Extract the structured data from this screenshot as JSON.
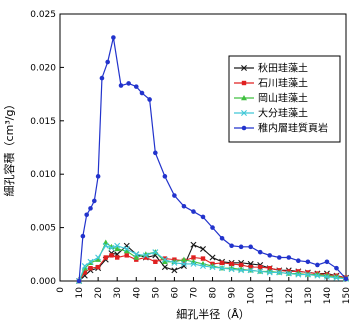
{
  "chart_data": {
    "type": "line",
    "xlabel": "細孔半径（Å）",
    "ylabel": "細孔容積（cm³/g）",
    "xlim": [
      0,
      150
    ],
    "ylim": [
      0,
      0.025
    ],
    "x_ticks": [
      0,
      10,
      20,
      30,
      40,
      50,
      60,
      70,
      80,
      90,
      100,
      110,
      120,
      130,
      140,
      150
    ],
    "y_ticks": [
      "0.000",
      "0.005",
      "0.010",
      "0.015",
      "0.020",
      "0.025"
    ],
    "grid": false,
    "legend_position": "top-right",
    "series": [
      {
        "name": "秋田珪藻土",
        "color": "#1a1a1a",
        "marker": "x",
        "points": [
          [
            10,
            0
          ],
          [
            13,
            0.0005
          ],
          [
            16,
            0.001
          ],
          [
            20,
            0.0012
          ],
          [
            24,
            0.002
          ],
          [
            27,
            0.0026
          ],
          [
            30,
            0.0025
          ],
          [
            35,
            0.0033
          ],
          [
            40,
            0.0025
          ],
          [
            45,
            0.0022
          ],
          [
            50,
            0.0024
          ],
          [
            55,
            0.0013
          ],
          [
            60,
            0.001
          ],
          [
            65,
            0.0014
          ],
          [
            70,
            0.0034
          ],
          [
            75,
            0.003
          ],
          [
            80,
            0.0022
          ],
          [
            85,
            0.0018
          ],
          [
            90,
            0.0017
          ],
          [
            95,
            0.0017
          ],
          [
            100,
            0.0016
          ],
          [
            105,
            0.0015
          ],
          [
            110,
            0.0012
          ],
          [
            115,
            0.001
          ],
          [
            120,
            0.001
          ],
          [
            125,
            0.0009
          ],
          [
            130,
            0.0008
          ],
          [
            135,
            0.0007
          ],
          [
            140,
            0.0007
          ],
          [
            145,
            0.0005
          ],
          [
            150,
            0.0003
          ]
        ]
      },
      {
        "name": "石川珪藻土",
        "color": "#e02020",
        "marker": "square",
        "points": [
          [
            10,
            0
          ],
          [
            13,
            0.0008
          ],
          [
            16,
            0.0012
          ],
          [
            20,
            0.0013
          ],
          [
            24,
            0.0022
          ],
          [
            27,
            0.0024
          ],
          [
            30,
            0.0022
          ],
          [
            35,
            0.0024
          ],
          [
            40,
            0.002
          ],
          [
            45,
            0.0022
          ],
          [
            50,
            0.0018
          ],
          [
            55,
            0.0021
          ],
          [
            60,
            0.002
          ],
          [
            65,
            0.0019
          ],
          [
            70,
            0.0022
          ],
          [
            75,
            0.0021
          ],
          [
            80,
            0.0016
          ],
          [
            85,
            0.0017
          ],
          [
            90,
            0.0016
          ],
          [
            95,
            0.0015
          ],
          [
            100,
            0.0013
          ],
          [
            105,
            0.0013
          ],
          [
            110,
            0.0012
          ],
          [
            115,
            0.001
          ],
          [
            120,
            0.0009
          ],
          [
            125,
            0.0009
          ],
          [
            130,
            0.0008
          ],
          [
            135,
            0.0007
          ],
          [
            140,
            0.0006
          ],
          [
            145,
            0.0005
          ],
          [
            150,
            0.0003
          ]
        ]
      },
      {
        "name": "岡山珪藻土",
        "color": "#40c040",
        "marker": "triangle",
        "points": [
          [
            10,
            0
          ],
          [
            13,
            0.0012
          ],
          [
            16,
            0.0017
          ],
          [
            20,
            0.002
          ],
          [
            24,
            0.0036
          ],
          [
            27,
            0.0032
          ],
          [
            30,
            0.003
          ],
          [
            35,
            0.0028
          ],
          [
            40,
            0.0022
          ],
          [
            45,
            0.0025
          ],
          [
            50,
            0.0027
          ],
          [
            55,
            0.0018
          ],
          [
            60,
            0.0018
          ],
          [
            65,
            0.002
          ],
          [
            70,
            0.0018
          ],
          [
            75,
            0.0016
          ],
          [
            80,
            0.0014
          ],
          [
            85,
            0.0012
          ],
          [
            90,
            0.0012
          ],
          [
            95,
            0.0011
          ],
          [
            100,
            0.001
          ],
          [
            105,
            0.0009
          ],
          [
            110,
            0.0009
          ],
          [
            115,
            0.0008
          ],
          [
            120,
            0.0007
          ],
          [
            125,
            0.0007
          ],
          [
            130,
            0.0006
          ],
          [
            135,
            0.0006
          ],
          [
            140,
            0.0005
          ],
          [
            145,
            0.0004
          ],
          [
            150,
            0.0002
          ]
        ]
      },
      {
        "name": "大分珪藻土",
        "color": "#40c8d8",
        "marker": "x",
        "points": [
          [
            10,
            0
          ],
          [
            13,
            0.0014
          ],
          [
            16,
            0.0018
          ],
          [
            20,
            0.0022
          ],
          [
            24,
            0.0033
          ],
          [
            27,
            0.0031
          ],
          [
            30,
            0.0033
          ],
          [
            35,
            0.003
          ],
          [
            40,
            0.0025
          ],
          [
            45,
            0.0024
          ],
          [
            50,
            0.0027
          ],
          [
            55,
            0.002
          ],
          [
            60,
            0.0017
          ],
          [
            65,
            0.0016
          ],
          [
            70,
            0.0016
          ],
          [
            75,
            0.0014
          ],
          [
            80,
            0.0013
          ],
          [
            85,
            0.0012
          ],
          [
            90,
            0.0011
          ],
          [
            95,
            0.001
          ],
          [
            100,
            0.001
          ],
          [
            105,
            0.0009
          ],
          [
            110,
            0.0008
          ],
          [
            115,
            0.0008
          ],
          [
            120,
            0.0007
          ],
          [
            125,
            0.0006
          ],
          [
            130,
            0.0006
          ],
          [
            135,
            0.0005
          ],
          [
            140,
            0.0004
          ],
          [
            145,
            0.0003
          ],
          [
            150,
            0.0002
          ]
        ]
      },
      {
        "name": "稚内層珪質頁岩",
        "color": "#2233cc",
        "marker": "circle",
        "points": [
          [
            10,
            0
          ],
          [
            12,
            0.0042
          ],
          [
            14,
            0.0062
          ],
          [
            16,
            0.0068
          ],
          [
            18,
            0.0075
          ],
          [
            20,
            0.0098
          ],
          [
            22,
            0.019
          ],
          [
            25,
            0.0205
          ],
          [
            28,
            0.0228
          ],
          [
            32,
            0.0183
          ],
          [
            36,
            0.0185
          ],
          [
            40,
            0.0182
          ],
          [
            43,
            0.0176
          ],
          [
            47,
            0.017
          ],
          [
            50,
            0.012
          ],
          [
            55,
            0.0098
          ],
          [
            60,
            0.008
          ],
          [
            65,
            0.007
          ],
          [
            70,
            0.0065
          ],
          [
            75,
            0.006
          ],
          [
            80,
            0.005
          ],
          [
            85,
            0.004
          ],
          [
            90,
            0.0033
          ],
          [
            95,
            0.0032
          ],
          [
            100,
            0.0032
          ],
          [
            105,
            0.0027
          ],
          [
            110,
            0.0024
          ],
          [
            115,
            0.0022
          ],
          [
            120,
            0.0022
          ],
          [
            125,
            0.0019
          ],
          [
            130,
            0.0018
          ],
          [
            135,
            0.0015
          ],
          [
            140,
            0.0018
          ],
          [
            145,
            0.0012
          ],
          [
            150,
            0.0002
          ]
        ]
      }
    ]
  }
}
